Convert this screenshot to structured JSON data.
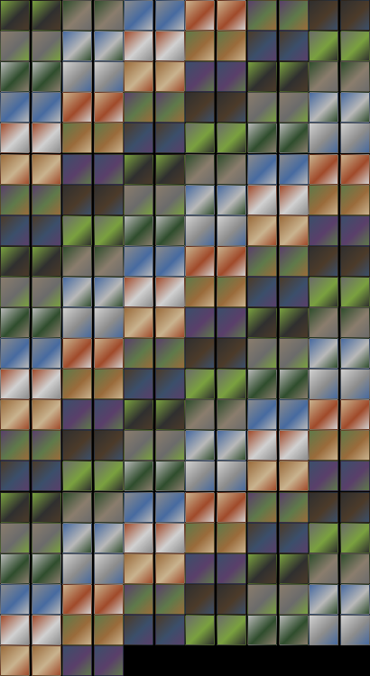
{
  "grid": {
    "columns": 6,
    "rows": 22,
    "pairs_total": 128,
    "palette": [
      "#6b6b6b",
      "#8c8c8c",
      "#5f7a4a",
      "#7aa13f",
      "#476aa0",
      "#9a6b3b",
      "#2f2f2f",
      "#b9b9b9",
      "#c9b38f",
      "#4c3b2a",
      "#2f4d2d",
      "#a04a2a",
      "#3b4f6b",
      "#8a7d6d",
      "#d1d1d1",
      "#5a3f6a"
    ]
  }
}
